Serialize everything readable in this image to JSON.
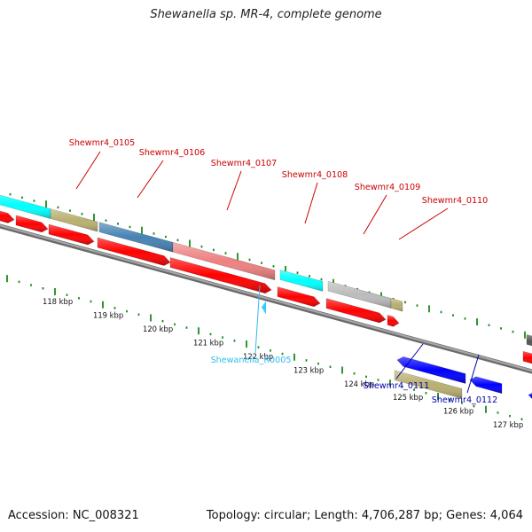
{
  "title": "Shewanella sp. MR-4, complete genome",
  "accession": "Accession: NC_008321",
  "stats": "Topology: circular; Length: 4,706,287 bp; Genes: 4,064",
  "colors": {
    "backbone": "#8c8c8c",
    "forward_cds": "#ff0000",
    "reverse_cds": "#0000ff",
    "rna": "#33ccff",
    "label_forward": "#cc0000",
    "label_reverse": "#0000aa",
    "label_rna": "#33bbee",
    "tick": "#1a8a1a",
    "cog_cyan": "#00ffff",
    "cog_khaki": "#b8b070",
    "cog_steel": "#4682b4",
    "cog_salmon": "#ee8080",
    "cog_gray": "#bbbbbb"
  },
  "axis_ticks": [
    "118 kbp",
    "119 kbp",
    "120 kbp",
    "121 kbp",
    "122 kbp",
    "123 kbp",
    "124 kbp",
    "125 kbp",
    "126 kbp",
    "127 kbp"
  ],
  "forward_labels": [
    "Shewmr4_0105",
    "Shewmr4_0106",
    "Shewmr4_0107",
    "Shewmr4_0108",
    "Shewmr4_0109",
    "Shewmr4_0110"
  ],
  "rna_labels": [
    "Shewanella_R0005"
  ],
  "reverse_labels": [
    "Shewmr4_0111",
    "Shewmr4_0112"
  ]
}
